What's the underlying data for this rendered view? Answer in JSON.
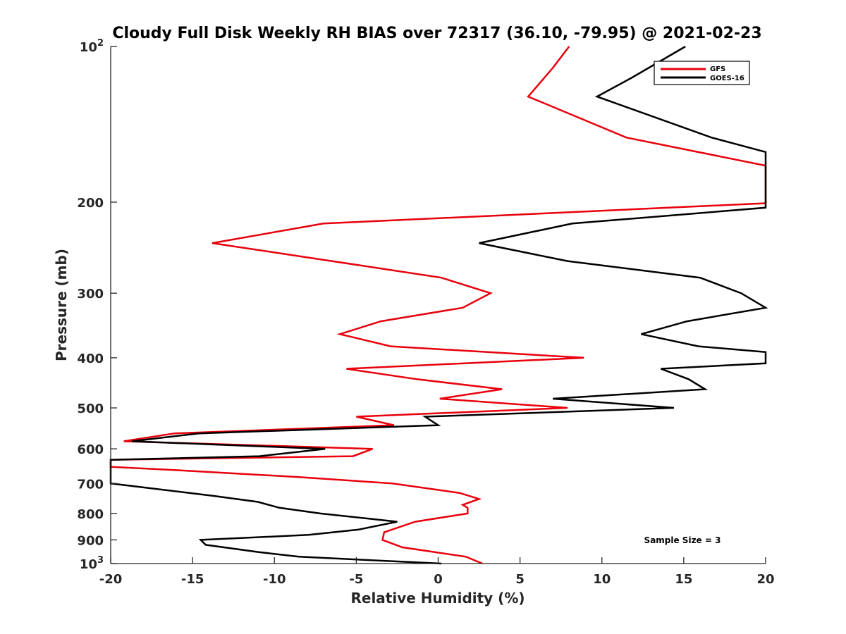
{
  "chart_data": {
    "type": "line",
    "orientation": "horizontal-profile",
    "title": "Cloudy Full Disk Weekly RH BIAS over 72317 (36.10, -79.95) @ 2021-02-23",
    "xlabel": "Relative Humidity (%)",
    "ylabel": "Pressure (mb)",
    "xlim": [
      -20,
      20
    ],
    "ylim": [
      100,
      1000
    ],
    "yscale": "log",
    "yreversed": true,
    "x_ticks": [
      "-20",
      "-15",
      "-10",
      "-5",
      "0",
      "5",
      "10",
      "15",
      "20"
    ],
    "y_ticks": [
      {
        "p": 100,
        "base": "10",
        "exp": "2"
      },
      {
        "p": 200,
        "label": "200"
      },
      {
        "p": 300,
        "label": "300"
      },
      {
        "p": 400,
        "label": "400"
      },
      {
        "p": 500,
        "label": "500"
      },
      {
        "p": 600,
        "label": "600"
      },
      {
        "p": 700,
        "label": "700"
      },
      {
        "p": 800,
        "label": "800"
      },
      {
        "p": 900,
        "label": "900"
      },
      {
        "p": 1000,
        "base": "10",
        "exp": "3"
      }
    ],
    "legend_position": "top-right",
    "annotation": "Sample Size = 3",
    "series": [
      {
        "name": "GFS",
        "color": "#e8000b",
        "points": [
          [
            8.0,
            100
          ],
          [
            7.0,
            110
          ],
          [
            5.5,
            125
          ],
          [
            11.5,
            150
          ],
          [
            20,
            170
          ],
          [
            20,
            201
          ],
          [
            -7.0,
            220
          ],
          [
            -13.8,
            240
          ],
          [
            -6.5,
            260
          ],
          [
            0.2,
            280
          ],
          [
            3.2,
            300
          ],
          [
            1.5,
            320
          ],
          [
            -3.5,
            340
          ],
          [
            -6.0,
            360
          ],
          [
            -2.9,
            380
          ],
          [
            8.9,
            400
          ],
          [
            -5.6,
            420
          ],
          [
            -1.3,
            440
          ],
          [
            3.9,
            460
          ],
          [
            0.1,
            480
          ],
          [
            7.9,
            500
          ],
          [
            -5.0,
            520
          ],
          [
            -2.7,
            540
          ],
          [
            -16.1,
            560
          ],
          [
            -19.2,
            580
          ],
          [
            -4.0,
            600
          ],
          [
            -5.2,
            620
          ],
          [
            -20,
            630
          ],
          [
            -20,
            650
          ],
          [
            -15.9,
            660
          ],
          [
            -8.6,
            680
          ],
          [
            -2.8,
            700
          ],
          [
            1.3,
            730
          ],
          [
            2.5,
            750
          ],
          [
            1.5,
            770
          ],
          [
            1.8,
            780
          ],
          [
            1.8,
            800
          ],
          [
            -1.4,
            830
          ],
          [
            -3.3,
            870
          ],
          [
            -3.4,
            900
          ],
          [
            -2.2,
            930
          ],
          [
            1.7,
            970
          ],
          [
            2.7,
            1000
          ]
        ]
      },
      {
        "name": "GOES-16",
        "color": "#000000",
        "points": [
          [
            15.1,
            100
          ],
          [
            11.8,
            115
          ],
          [
            9.7,
            125
          ],
          [
            16.7,
            150
          ],
          [
            20,
            160
          ],
          [
            20,
            205
          ],
          [
            8.2,
            220
          ],
          [
            2.5,
            240
          ],
          [
            7.9,
            260
          ],
          [
            16.0,
            280
          ],
          [
            18.5,
            300
          ],
          [
            20,
            320
          ],
          [
            15.2,
            340
          ],
          [
            12.4,
            360
          ],
          [
            15.9,
            380
          ],
          [
            20,
            390
          ],
          [
            20,
            410
          ],
          [
            13.6,
            420
          ],
          [
            15.3,
            440
          ],
          [
            16.3,
            460
          ],
          [
            7.0,
            480
          ],
          [
            14.4,
            500
          ],
          [
            -0.8,
            520
          ],
          [
            0.0,
            540
          ],
          [
            -14.6,
            560
          ],
          [
            -18.7,
            580
          ],
          [
            -6.9,
            600
          ],
          [
            -10.9,
            620
          ],
          [
            -20,
            630
          ],
          [
            -20,
            700
          ],
          [
            -13.7,
            740
          ],
          [
            -11.0,
            760
          ],
          [
            -9.7,
            780
          ],
          [
            -7.2,
            800
          ],
          [
            -2.5,
            830
          ],
          [
            -4.9,
            860
          ],
          [
            -7.9,
            880
          ],
          [
            -14.5,
            900
          ],
          [
            -14.2,
            920
          ],
          [
            -11.0,
            950
          ],
          [
            -8.5,
            970
          ],
          [
            0.2,
            1000
          ]
        ]
      }
    ]
  }
}
